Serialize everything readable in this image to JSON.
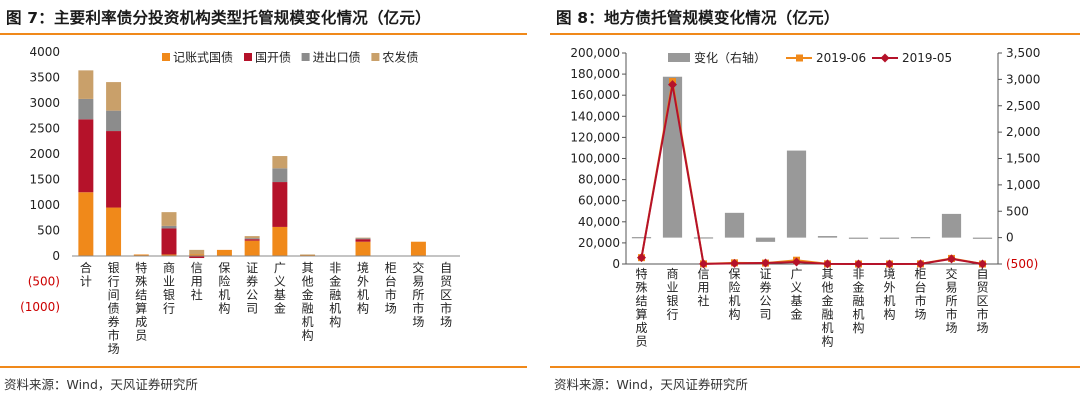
{
  "left": {
    "title": "图 7：主要利率债分投资机构类型托管规模变化情况（亿元）",
    "source": "资料来源：Wind，天风证券研究所"
  },
  "right": {
    "title": "图 8：地方债托管规模变化情况（亿元）",
    "source": "资料来源：Wind，天风证券研究所"
  },
  "chart_data": [
    {
      "type": "bar",
      "stacked": true,
      "legend_position": "top",
      "ylim": [
        -1000,
        4000
      ],
      "y_ticks": [
        4000,
        3500,
        3000,
        2500,
        2000,
        1500,
        1000,
        500,
        0,
        -500,
        -1000
      ],
      "y_tick_labels": [
        "4000",
        "3500",
        "3000",
        "2500",
        "2000",
        "1500",
        "1000",
        "500",
        "0",
        "(500)",
        "(1000)"
      ],
      "negative_tick_color": "#cc0000",
      "categories": [
        "合计",
        "银行间债券市场",
        "特殊结算成员",
        "商业银行",
        "信用社",
        "保险机构",
        "证券公司",
        "广义基金",
        "其他金融机构",
        "非金融机构",
        "境外机构",
        "柜台市场",
        "交易所市场",
        "自贸区市场"
      ],
      "series": [
        {
          "name": "记账式国债",
          "color": "#f0891a",
          "values": [
            1250,
            950,
            30,
            30,
            30,
            120,
            300,
            570,
            20,
            0,
            280,
            0,
            280,
            0
          ]
        },
        {
          "name": "国开债",
          "color": "#b5122a",
          "values": [
            1430,
            1500,
            0,
            510,
            -40,
            0,
            30,
            880,
            0,
            0,
            50,
            0,
            0,
            0
          ]
        },
        {
          "name": "进出口债",
          "color": "#8c8c8c",
          "values": [
            400,
            400,
            0,
            50,
            0,
            0,
            20,
            270,
            0,
            0,
            20,
            0,
            0,
            0
          ]
        },
        {
          "name": "农发债",
          "color": "#c9a06a",
          "values": [
            560,
            560,
            0,
            270,
            90,
            0,
            40,
            240,
            10,
            0,
            10,
            0,
            0,
            0
          ]
        }
      ]
    },
    {
      "type": "bar",
      "legend_position": "top",
      "left_axis": {
        "ylim": [
          0,
          200000
        ],
        "ticks": [
          "200,000",
          "180,000",
          "160,000",
          "140,000",
          "120,000",
          "100,000",
          "80,000",
          "60,000",
          "40,000",
          "20,000",
          "0"
        ]
      },
      "right_axis": {
        "ylim": [
          -500,
          3500
        ],
        "ticks": [
          "3,500",
          "3,000",
          "2,500",
          "2,000",
          "1,500",
          "1,000",
          "500",
          "0",
          "(500)"
        ],
        "negative_tick_color": "#cc0000"
      },
      "categories": [
        "特殊结算成员",
        "商业银行",
        "信用社",
        "保险机构",
        "证券公司",
        "广义基金",
        "其他金融机构",
        "非金融机构",
        "境外机构",
        "柜台市场",
        "交易所市场",
        "自贸区市场"
      ],
      "series": [
        {
          "name": "变化（右轴）",
          "kind": "bar",
          "axis": "right",
          "color": "#999999",
          "values": [
            10,
            3050,
            5,
            470,
            -80,
            1650,
            30,
            0,
            0,
            10,
            450,
            0
          ]
        },
        {
          "name": "2019-06",
          "kind": "line",
          "axis": "left",
          "color": "#f0891a",
          "values": [
            6000,
            173000,
            140,
            1100,
            870,
            3600,
            160,
            8,
            7,
            120,
            5300,
            4
          ]
        },
        {
          "name": "2019-05",
          "kind": "line",
          "axis": "left",
          "color": "#b5122a",
          "values": [
            6000,
            170000,
            135,
            600,
            950,
            1900,
            130,
            8,
            7,
            110,
            4800,
            4
          ]
        }
      ]
    }
  ]
}
